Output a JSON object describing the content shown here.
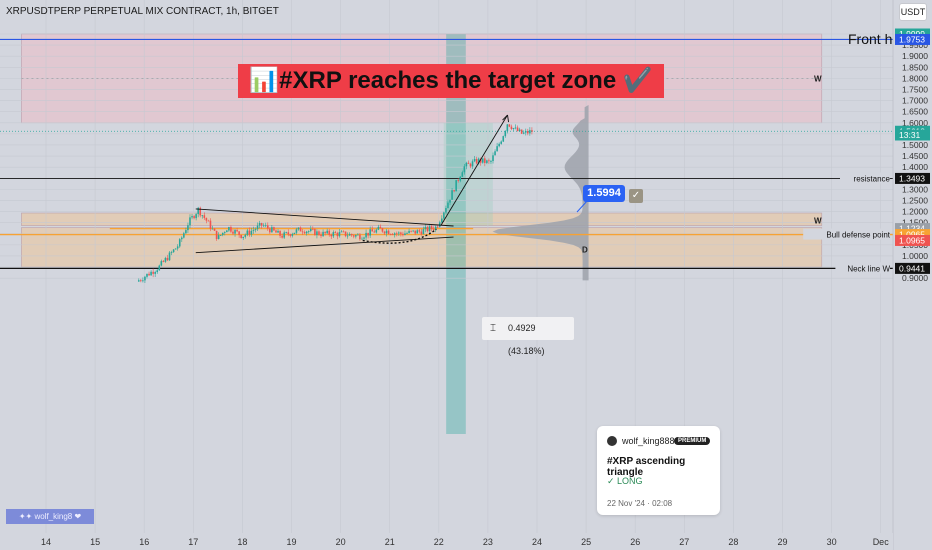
{
  "header": {
    "symbol_line": "XRPUSDTPERP PERPETUAL MIX CONTRACT, 1h, BITGET",
    "currency_button": "USDT"
  },
  "banner": {
    "icon": "chart-icon",
    "text": "📊#XRP reaches the target zone ✔️"
  },
  "annotations": {
    "front_label": "Front h",
    "measure_text": "0.4929 (43.18%)",
    "callout_price": "1.5994",
    "watermark": "✦✦ wolf_king8 ❤"
  },
  "card": {
    "user": "wolf_king888",
    "badge": "PREMIUM",
    "title": "#XRP ascending triangle",
    "signal": "✓ LONG",
    "date": "22 Nov '24 · 02:08"
  },
  "colors": {
    "background": "#d3d6de",
    "target_zone": "#e3c7d0",
    "support_zone": "#e3ccb3",
    "bull_candle": "#26a69a",
    "bear_candle": "#ef5350",
    "front_line": "#2956e4",
    "orange_line": "#f7a233",
    "black_line": "#111111",
    "measure_box": "#93ccb9"
  },
  "chart_data": {
    "type": "candlestick",
    "timeframe": "1h",
    "x_ticks": [
      "14",
      "15",
      "16",
      "17",
      "18",
      "19",
      "20",
      "21",
      "22",
      "23",
      "24",
      "25",
      "26",
      "27",
      "28",
      "29",
      "30",
      "Dec"
    ],
    "y_ticks": [
      "1.9999",
      "1.9500",
      "1.9000",
      "1.8500",
      "1.8000",
      "1.7500",
      "1.7000",
      "1.6500",
      "1.6000",
      "1.5500",
      "1.5000",
      "1.4500",
      "1.4000",
      "1.3500",
      "1.3000",
      "1.2500",
      "1.2000",
      "1.1500",
      "1.1000",
      "1.0500",
      "1.0000",
      "0.9500",
      "0.9000"
    ],
    "ylim": [
      0.885,
      2.05
    ],
    "price_path": [
      {
        "day": 15.85,
        "price": 0.885
      },
      {
        "day": 16.3,
        "price": 0.95
      },
      {
        "day": 16.7,
        "price": 1.05
      },
      {
        "day": 16.9,
        "price": 1.15
      },
      {
        "day": 17.1,
        "price": 1.21
      },
      {
        "day": 17.3,
        "price": 1.15
      },
      {
        "day": 17.5,
        "price": 1.08
      },
      {
        "day": 17.7,
        "price": 1.13
      },
      {
        "day": 18.0,
        "price": 1.09
      },
      {
        "day": 18.4,
        "price": 1.14
      },
      {
        "day": 18.8,
        "price": 1.09
      },
      {
        "day": 19.2,
        "price": 1.12
      },
      {
        "day": 19.6,
        "price": 1.1
      },
      {
        "day": 20.0,
        "price": 1.1
      },
      {
        "day": 20.4,
        "price": 1.09
      },
      {
        "day": 20.8,
        "price": 1.12
      },
      {
        "day": 21.2,
        "price": 1.1
      },
      {
        "day": 21.6,
        "price": 1.11
      },
      {
        "day": 21.95,
        "price": 1.13
      },
      {
        "day": 22.2,
        "price": 1.25
      },
      {
        "day": 22.5,
        "price": 1.4
      },
      {
        "day": 22.8,
        "price": 1.43
      },
      {
        "day": 23.05,
        "price": 1.42
      },
      {
        "day": 23.3,
        "price": 1.54
      },
      {
        "day": 23.4,
        "price": 1.6
      },
      {
        "day": 23.55,
        "price": 1.57
      },
      {
        "day": 23.7,
        "price": 1.55
      },
      {
        "day": 23.9,
        "price": 1.562
      }
    ],
    "levels": [
      {
        "label": "Front h",
        "price": 1.9753,
        "display": "1.9753"
      },
      {
        "label": "resistance",
        "price": 1.3493,
        "display": "1.3493"
      },
      {
        "label": "Bull defense point",
        "price": 1.0965,
        "display": "1.0965"
      },
      {
        "label": "Neck line W",
        "price": 0.9441,
        "display": "0.9441"
      }
    ],
    "price_tags": [
      {
        "text": "1.9999",
        "price": 1.9999,
        "bg": "#26a69a"
      },
      {
        "text": "1.9753",
        "price": 1.9753,
        "bg": "#2956e4"
      },
      {
        "text": "1.5618",
        "price": 1.5618,
        "bg": "#26a69a"
      },
      {
        "text": "13:31",
        "price": 1.545,
        "bg": "#26a69a"
      },
      {
        "text": "1.3493",
        "price": 1.3493,
        "bg": "#111111"
      },
      {
        "text": "1.1234",
        "price": 1.1234,
        "bg": "#9aa0a8"
      },
      {
        "text": "1.0965",
        "price": 1.0965,
        "bg": "#f7a233"
      },
      {
        "text": "1.0965",
        "price": 1.07,
        "bg": "#ef5350"
      },
      {
        "text": "0.9441",
        "price": 0.9441,
        "bg": "#111111"
      }
    ],
    "zones": [
      {
        "name": "target-zone",
        "from_day": 13.5,
        "to_day": 29.8,
        "low": 1.6,
        "high": 2.0
      },
      {
        "name": "support-zone-upper",
        "from_day": 13.5,
        "to_day": 29.8,
        "low": 1.137,
        "high": 1.1935
      },
      {
        "name": "support-zone-lower",
        "from_day": 13.5,
        "to_day": 29.8,
        "low": 0.95,
        "high": 1.128
      }
    ],
    "zone_labels": [
      {
        "text": "W",
        "price": 1.8
      },
      {
        "text": "W",
        "price": 1.16
      },
      {
        "text": "D",
        "price": 1.03
      }
    ],
    "triangle": {
      "upper": [
        {
          "day": 17.05,
          "price": 1.212
        },
        {
          "day": 22.3,
          "price": 1.135
        }
      ],
      "lower": [
        {
          "day": 17.05,
          "price": 1.015
        },
        {
          "day": 22.3,
          "price": 1.085
        }
      ]
    },
    "trend_arrow": [
      {
        "day": 22.05,
        "price": 1.14
      },
      {
        "day": 23.4,
        "price": 1.635
      }
    ],
    "vertical_band": {
      "from_day": 22.15,
      "to_day": 22.55
    },
    "volume_profile_peak_price": 1.11
  }
}
